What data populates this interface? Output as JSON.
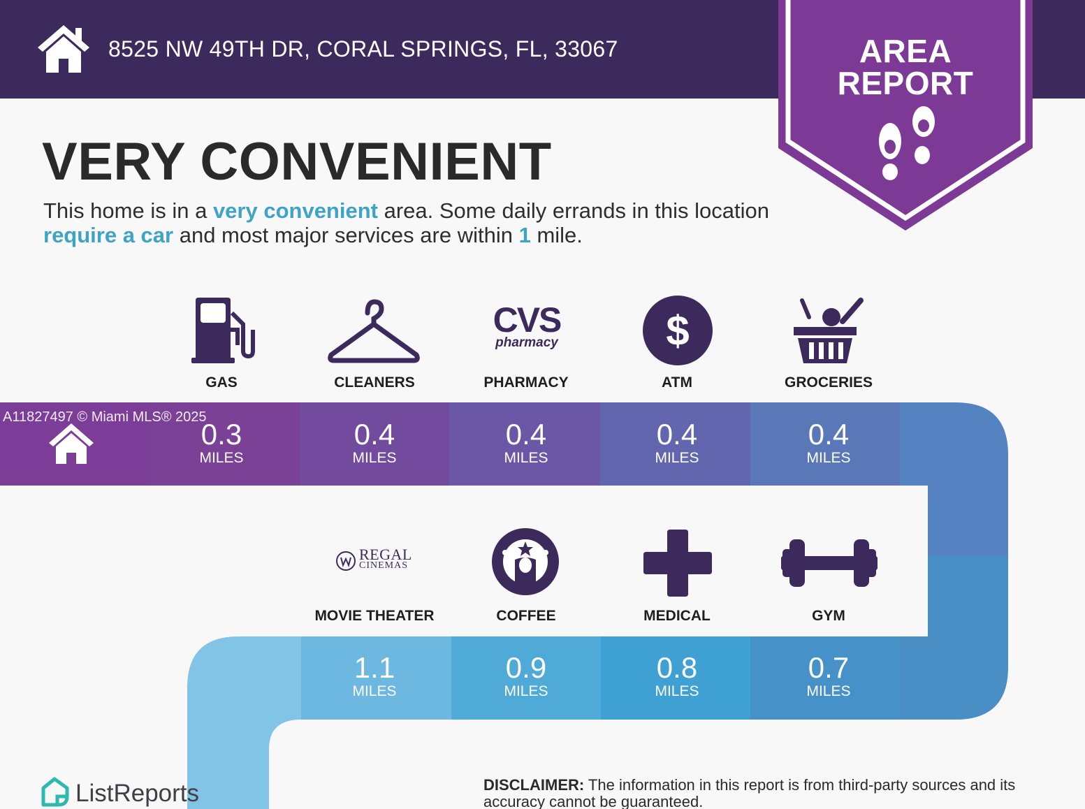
{
  "header": {
    "address": "8525 NW 49TH DR, CORAL SPRINGS, FL, 33067",
    "home_icon": "house-icon"
  },
  "badge": {
    "line1": "AREA",
    "line2": "REPORT",
    "icon": "footprints-icon"
  },
  "headline": "VERY CONVENIENT",
  "description": {
    "p1": "This home is in a ",
    "h1": "very convenient",
    "p2": " area. Some daily errands in this location ",
    "h2": "require a car",
    "p3": " and most major services are within ",
    "h3": "1",
    "p4": " mile."
  },
  "row1": [
    {
      "label": "GAS",
      "value": "0.3",
      "unit": "MILES",
      "icon": "gas-pump-icon"
    },
    {
      "label": "CLEANERS",
      "value": "0.4",
      "unit": "MILES",
      "icon": "hanger-icon"
    },
    {
      "label": "PHARMACY",
      "value": "0.4",
      "unit": "MILES",
      "icon": "cvs-pharmacy-logo"
    },
    {
      "label": "ATM",
      "value": "0.4",
      "unit": "MILES",
      "icon": "dollar-coin-icon"
    },
    {
      "label": "GROCERIES",
      "value": "0.4",
      "unit": "MILES",
      "icon": "grocery-basket-icon"
    }
  ],
  "row2": [
    {
      "label": "MOVIE THEATER",
      "value": "1.1",
      "unit": "MILES",
      "icon": "regal-cinemas-logo"
    },
    {
      "label": "COFFEE",
      "value": "0.9",
      "unit": "MILES",
      "icon": "starbucks-logo"
    },
    {
      "label": "MEDICAL",
      "value": "0.8",
      "unit": "MILES",
      "icon": "medical-cross-icon"
    },
    {
      "label": "GYM",
      "value": "0.7",
      "unit": "MILES",
      "icon": "dumbbell-icon"
    }
  ],
  "logos": {
    "cvs_line1": "CVS",
    "cvs_line2": "pharmacy",
    "regal_line1": "REGAL",
    "regal_line2": "CINEMAS"
  },
  "watermark": "A11827497 © Miami MLS® 2025",
  "footer": {
    "brand": "ListReports",
    "disclaimer_label": "DISCLAIMER:",
    "disclaimer_text": " The information in this report is from third-party sources and its accuracy cannot be guaranteed."
  },
  "colors": {
    "header_bg": "#3d2a5c",
    "badge_purple": "#7c3a96",
    "accent_teal": "#3fa3c6",
    "icon_purple": "#3d2a5c"
  }
}
